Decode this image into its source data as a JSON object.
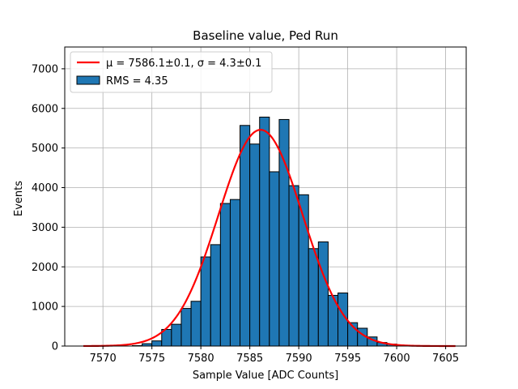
{
  "chart_data": {
    "type": "bar",
    "title": "Baseline value, Ped Run",
    "xlabel": "Sample Value [ADC Counts]",
    "ylabel": "Events",
    "xlim": [
      7566.1,
      7607.1
    ],
    "ylim": [
      0,
      7550
    ],
    "xticks": [
      7570,
      7575,
      7580,
      7585,
      7590,
      7595,
      7600,
      7605
    ],
    "yticks": [
      0,
      1000,
      2000,
      3000,
      4000,
      5000,
      6000,
      7000
    ],
    "grid": true,
    "legend_position": "top-left",
    "colors": {
      "bar_fill": "#1f77b4",
      "bar_edge": "#000000",
      "fit_line": "#ff0000",
      "grid": "#b0b0b0"
    },
    "histogram": {
      "bin_width": 1,
      "bin_left_edges": [
        7568,
        7569,
        7570,
        7571,
        7572,
        7573,
        7574,
        7575,
        7576,
        7577,
        7578,
        7579,
        7580,
        7581,
        7582,
        7583,
        7584,
        7585,
        7586,
        7587,
        7588,
        7589,
        7590,
        7591,
        7592,
        7593,
        7594,
        7595,
        7596,
        7597,
        7598,
        7599,
        7600,
        7601,
        7602,
        7603,
        7604,
        7605,
        7606
      ],
      "counts": [
        0,
        0,
        0,
        0,
        0,
        10,
        60,
        130,
        420,
        550,
        950,
        1130,
        2250,
        2560,
        3600,
        3700,
        5570,
        5100,
        5780,
        4400,
        5720,
        4050,
        3820,
        2460,
        2630,
        1280,
        1340,
        590,
        450,
        230,
        90,
        50,
        20,
        0,
        0,
        0,
        0,
        0,
        0
      ]
    },
    "series": [
      {
        "name": "RMS = 4.35",
        "kind": "histogram"
      },
      {
        "name": "μ = 7586.1±0.1, σ = 4.3±0.1",
        "kind": "gaussian_fit",
        "mu": 7586.1,
        "sigma": 4.3,
        "amplitude": 5460,
        "x_range": [
          7568,
          7606
        ]
      }
    ],
    "legend": [
      {
        "label": "μ = 7586.1±0.1, σ = 4.3±0.1",
        "style": "line",
        "color": "#ff0000"
      },
      {
        "label": "RMS = 4.35",
        "style": "patch",
        "color": "#1f77b4"
      }
    ]
  }
}
